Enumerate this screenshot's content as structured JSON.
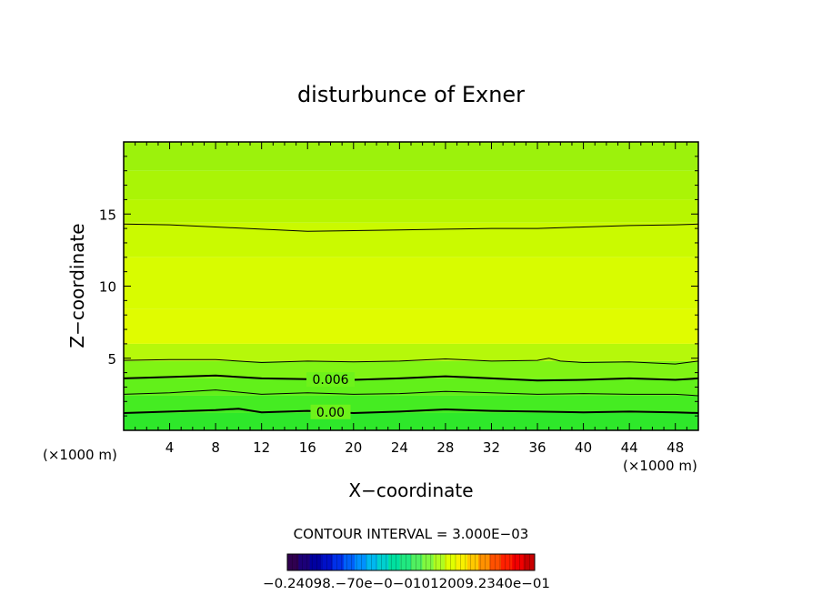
{
  "chart_data": {
    "type": "heatmap",
    "title": "disturbunce of Exner",
    "xlabel": "X−coordinate",
    "ylabel": "Z−coordinate",
    "x_unit_left": "(×1000 m)",
    "x_unit_right": "(×1000 m)",
    "xlim": [
      0,
      50
    ],
    "ylim": [
      0,
      20
    ],
    "x_ticks": [
      4,
      8,
      12,
      16,
      20,
      24,
      28,
      32,
      36,
      40,
      44,
      48
    ],
    "y_ticks": [
      5,
      10,
      15
    ],
    "bands": [
      {
        "z": [
          0.0,
          1.2
        ],
        "color": "#2ee82a"
      },
      {
        "z": [
          1.2,
          2.4
        ],
        "color": "#45ec22"
      },
      {
        "z": [
          2.4,
          3.6
        ],
        "color": "#62f01a"
      },
      {
        "z": [
          3.6,
          4.8
        ],
        "color": "#80f414"
      },
      {
        "z": [
          4.8,
          6.0
        ],
        "color": "#b6f80a"
      },
      {
        "z": [
          6.0,
          8.4
        ],
        "color": "#e0fc00"
      },
      {
        "z": [
          8.4,
          12.0
        ],
        "color": "#d8fc00"
      },
      {
        "z": [
          12.0,
          14.4
        ],
        "color": "#cafa00"
      },
      {
        "z": [
          14.4,
          16.0
        ],
        "color": "#b8f600"
      },
      {
        "z": [
          16.0,
          18.0
        ],
        "color": "#aaf406"
      },
      {
        "z": [
          18.0,
          20.0
        ],
        "color": "#9cf20c"
      }
    ],
    "contours": [
      {
        "label": "0.00",
        "x": [
          0,
          4,
          8,
          10,
          12,
          16,
          20,
          24,
          28,
          32,
          36,
          40,
          44,
          48,
          50
        ],
        "z": [
          1.2,
          1.3,
          1.4,
          1.5,
          1.25,
          1.35,
          1.2,
          1.3,
          1.45,
          1.35,
          1.3,
          1.25,
          1.3,
          1.25,
          1.2
        ],
        "bold": true
      },
      {
        "label": "",
        "x": [
          0,
          4,
          8,
          12,
          16,
          20,
          24,
          28,
          32,
          36,
          40,
          44,
          48,
          50
        ],
        "z": [
          2.5,
          2.6,
          2.8,
          2.5,
          2.6,
          2.5,
          2.55,
          2.7,
          2.6,
          2.5,
          2.55,
          2.5,
          2.5,
          2.4
        ],
        "bold": false
      },
      {
        "label": "0.006",
        "x": [
          0,
          4,
          8,
          12,
          16,
          20,
          24,
          28,
          32,
          36,
          40,
          44,
          48,
          50
        ],
        "z": [
          3.6,
          3.7,
          3.8,
          3.6,
          3.55,
          3.5,
          3.6,
          3.75,
          3.6,
          3.45,
          3.5,
          3.6,
          3.5,
          3.6
        ],
        "bold": true
      },
      {
        "label": "",
        "x": [
          0,
          4,
          8,
          12,
          16,
          20,
          24,
          28,
          32,
          36,
          37,
          38,
          40,
          44,
          48,
          50
        ],
        "z": [
          4.85,
          4.9,
          4.9,
          4.7,
          4.8,
          4.75,
          4.8,
          4.95,
          4.8,
          4.85,
          5.0,
          4.8,
          4.7,
          4.75,
          4.6,
          4.8
        ],
        "bold": false
      },
      {
        "label": "",
        "x": [
          0,
          4,
          8,
          12,
          16,
          20,
          24,
          28,
          32,
          36,
          40,
          44,
          48,
          50
        ],
        "z": [
          14.3,
          14.25,
          14.1,
          13.95,
          13.8,
          13.85,
          13.9,
          13.95,
          14.0,
          14.0,
          14.1,
          14.2,
          14.25,
          14.3
        ],
        "bold": false
      }
    ],
    "contour_interval_text": "CONTOUR INTERVAL = 3.000E−03",
    "colorbar": {
      "colors": [
        "#300050",
        "#1c0078",
        "#0000a0",
        "#0010c8",
        "#0030e8",
        "#0060f8",
        "#0090ff",
        "#00b8f0",
        "#00d0d0",
        "#00e0a0",
        "#20e880",
        "#50f060",
        "#80f840",
        "#b0fc20",
        "#e0ff00",
        "#f8f000",
        "#ffc800",
        "#ff9000",
        "#ff5000",
        "#ff2000",
        "#f00000",
        "#c80000"
      ],
      "tick_labels_text": "−0.24098.−70e−0−01012009.2340e−01"
    }
  }
}
